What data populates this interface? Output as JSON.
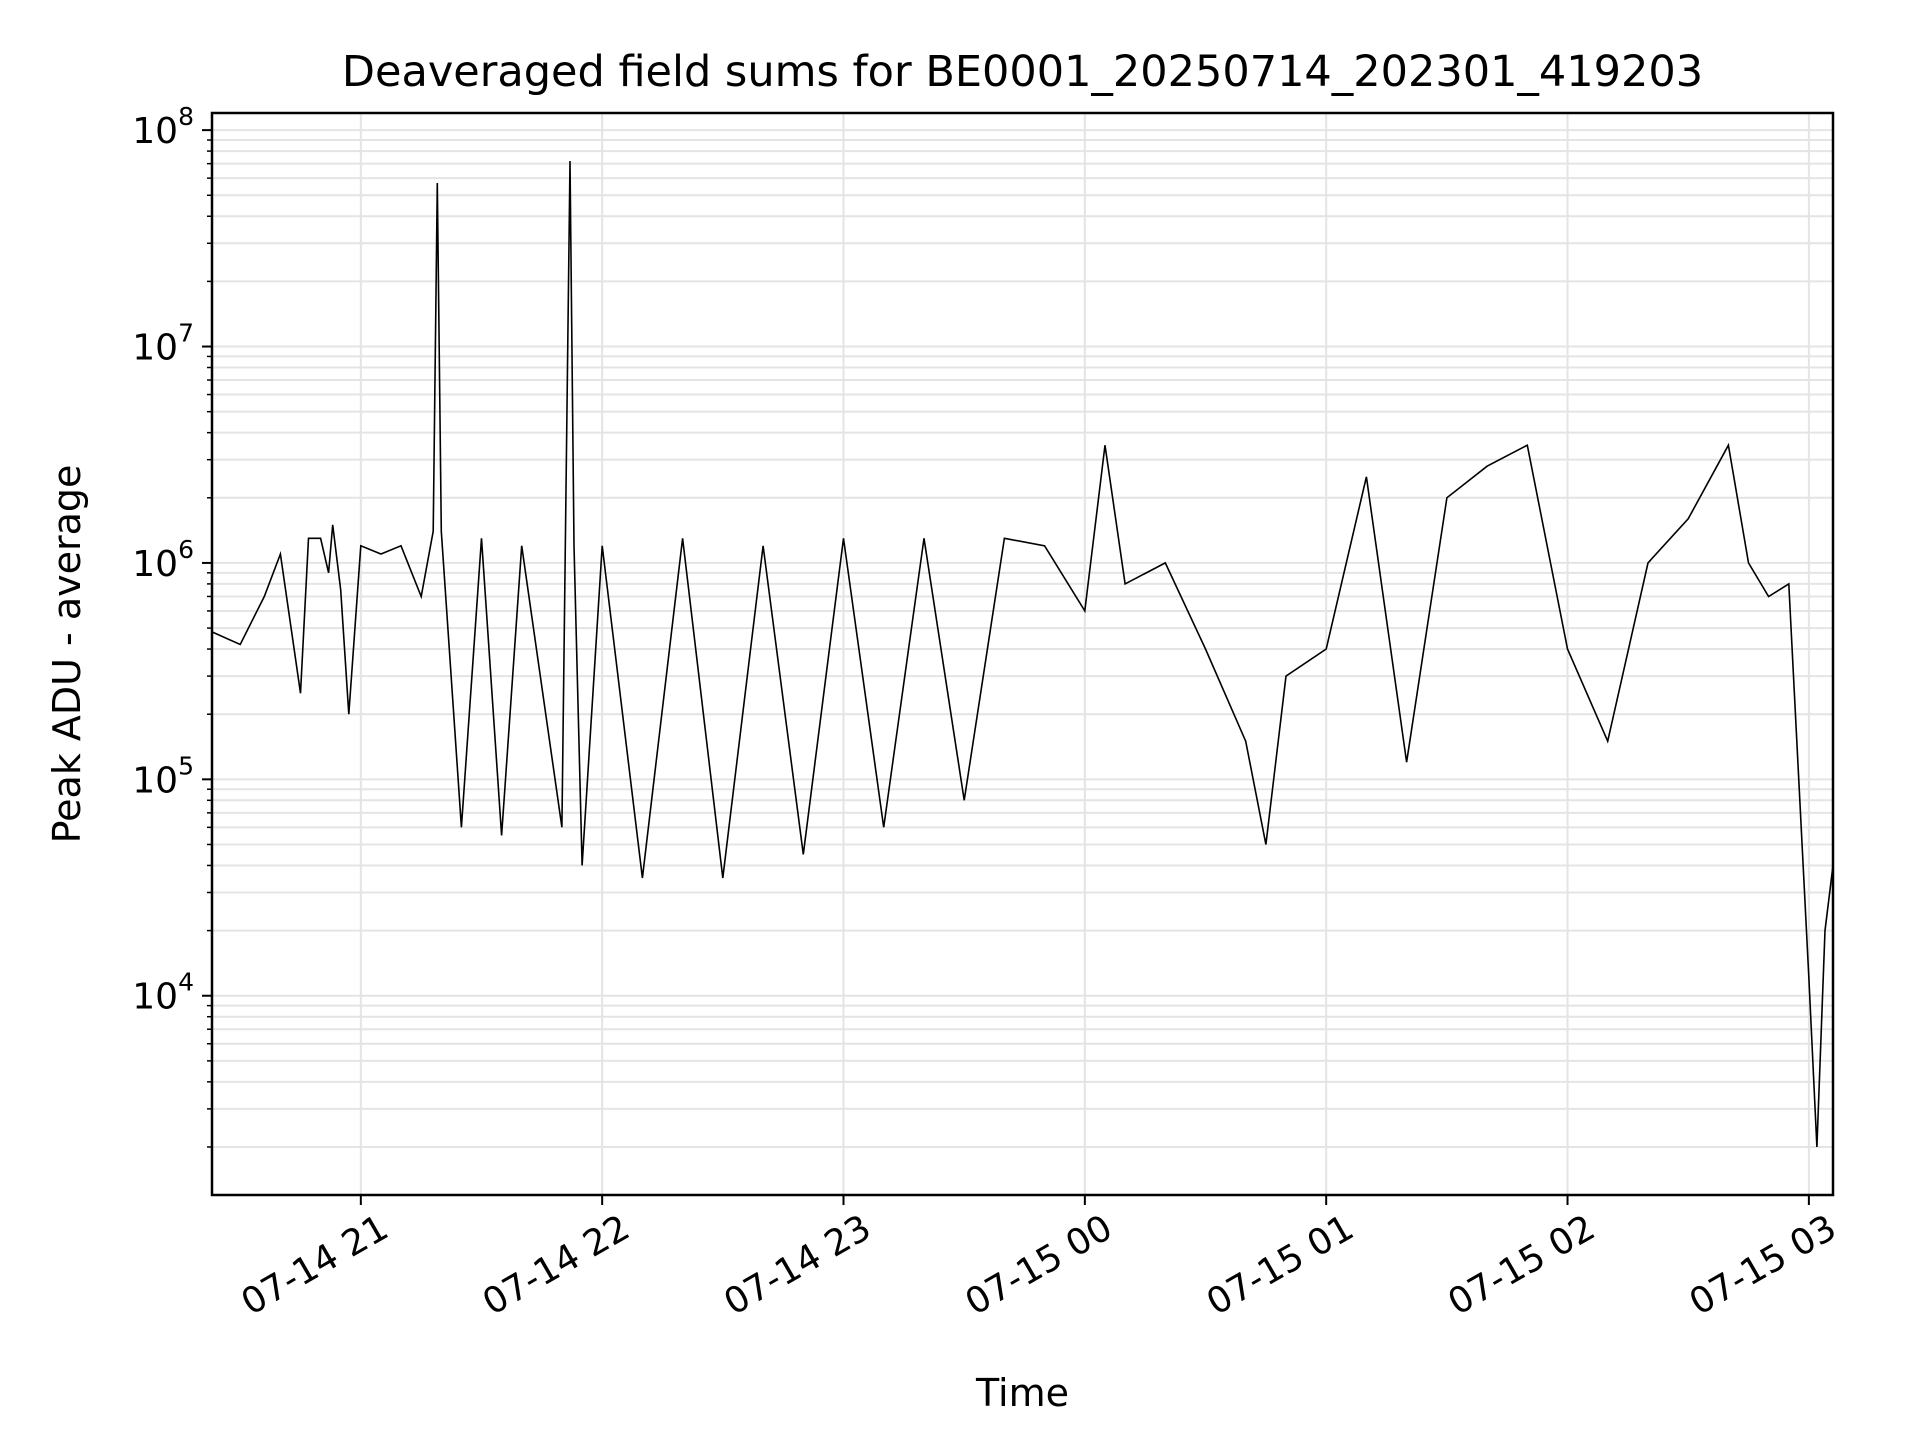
{
  "chart_data": {
    "type": "line",
    "title": "Deaveraged field sums for BE0001_20250714_202301_419203",
    "xlabel": "Time",
    "ylabel": "Peak ADU - average",
    "yscale": "log",
    "ylim": [
      1200,
      120000000
    ],
    "xlim": [
      "2025-07-14 20:23",
      "2025-07-15 03:06"
    ],
    "grid": true,
    "line_color": "#000000",
    "x_ticks": [
      {
        "value": "2025-07-14 21:00",
        "label": "07-14 21"
      },
      {
        "value": "2025-07-14 22:00",
        "label": "07-14 22"
      },
      {
        "value": "2025-07-14 23:00",
        "label": "07-14 23"
      },
      {
        "value": "2025-07-15 00:00",
        "label": "07-15 00"
      },
      {
        "value": "2025-07-15 01:00",
        "label": "07-15 01"
      },
      {
        "value": "2025-07-15 02:00",
        "label": "07-15 02"
      },
      {
        "value": "2025-07-15 03:00",
        "label": "07-15 03"
      }
    ],
    "y_ticks": [
      {
        "value": 10000,
        "base": "10",
        "exp": "4"
      },
      {
        "value": 100000,
        "base": "10",
        "exp": "5"
      },
      {
        "value": 1000000,
        "base": "10",
        "exp": "6"
      },
      {
        "value": 10000000,
        "base": "10",
        "exp": "7"
      },
      {
        "value": 100000000,
        "base": "10",
        "exp": "8"
      }
    ],
    "series": [
      {
        "x": [
          "2025-07-14 20:23",
          "2025-07-14 20:30",
          "2025-07-14 20:36",
          "2025-07-14 20:40",
          "2025-07-14 20:45",
          "2025-07-14 20:47",
          "2025-07-14 20:50",
          "2025-07-14 20:52",
          "2025-07-14 20:53",
          "2025-07-14 20:55",
          "2025-07-14 20:57",
          "2025-07-14 21:00",
          "2025-07-14 21:05",
          "2025-07-14 21:10",
          "2025-07-14 21:15",
          "2025-07-14 21:18",
          "2025-07-14 21:19",
          "2025-07-14 21:20",
          "2025-07-14 21:25",
          "2025-07-14 21:30",
          "2025-07-14 21:35",
          "2025-07-14 21:40",
          "2025-07-14 21:50",
          "2025-07-14 21:52",
          "2025-07-14 21:53",
          "2025-07-14 21:55",
          "2025-07-14 22:00",
          "2025-07-14 22:10",
          "2025-07-14 22:20",
          "2025-07-14 22:30",
          "2025-07-14 22:40",
          "2025-07-14 22:50",
          "2025-07-14 23:00",
          "2025-07-14 23:10",
          "2025-07-14 23:20",
          "2025-07-14 23:30",
          "2025-07-14 23:40",
          "2025-07-14 23:50",
          "2025-07-15 00:00",
          "2025-07-15 00:05",
          "2025-07-15 00:10",
          "2025-07-15 00:20",
          "2025-07-15 00:30",
          "2025-07-15 00:40",
          "2025-07-15 00:45",
          "2025-07-15 00:50",
          "2025-07-15 01:00",
          "2025-07-15 01:10",
          "2025-07-15 01:20",
          "2025-07-15 01:30",
          "2025-07-15 01:40",
          "2025-07-15 01:50",
          "2025-07-15 02:00",
          "2025-07-15 02:10",
          "2025-07-15 02:20",
          "2025-07-15 02:30",
          "2025-07-15 02:40",
          "2025-07-15 02:45",
          "2025-07-15 02:50",
          "2025-07-15 02:55",
          "2025-07-15 03:00",
          "2025-07-15 03:02",
          "2025-07-15 03:04",
          "2025-07-15 03:06"
        ],
        "y": [
          480000,
          420000,
          700000,
          1100000,
          250000,
          1300000,
          1300000,
          900000,
          1500000,
          750000,
          200000,
          1200000,
          1100000,
          1200000,
          700000,
          1400000,
          57000000,
          1400000,
          60000,
          1300000,
          55000,
          1200000,
          60000,
          72000000,
          1200000,
          40000,
          1200000,
          35000,
          1300000,
          35000,
          1200000,
          45000,
          1300000,
          60000,
          1300000,
          80000,
          1300000,
          1200000,
          600000,
          3500000,
          800000,
          1000000,
          400000,
          150000,
          50000,
          300000,
          400000,
          2500000,
          120000,
          2000000,
          2800000,
          3500000,
          400000,
          150000,
          1000000,
          1600000,
          3500000,
          1000000,
          700000,
          800000,
          12000,
          2000,
          20000,
          40000
        ]
      }
    ]
  }
}
